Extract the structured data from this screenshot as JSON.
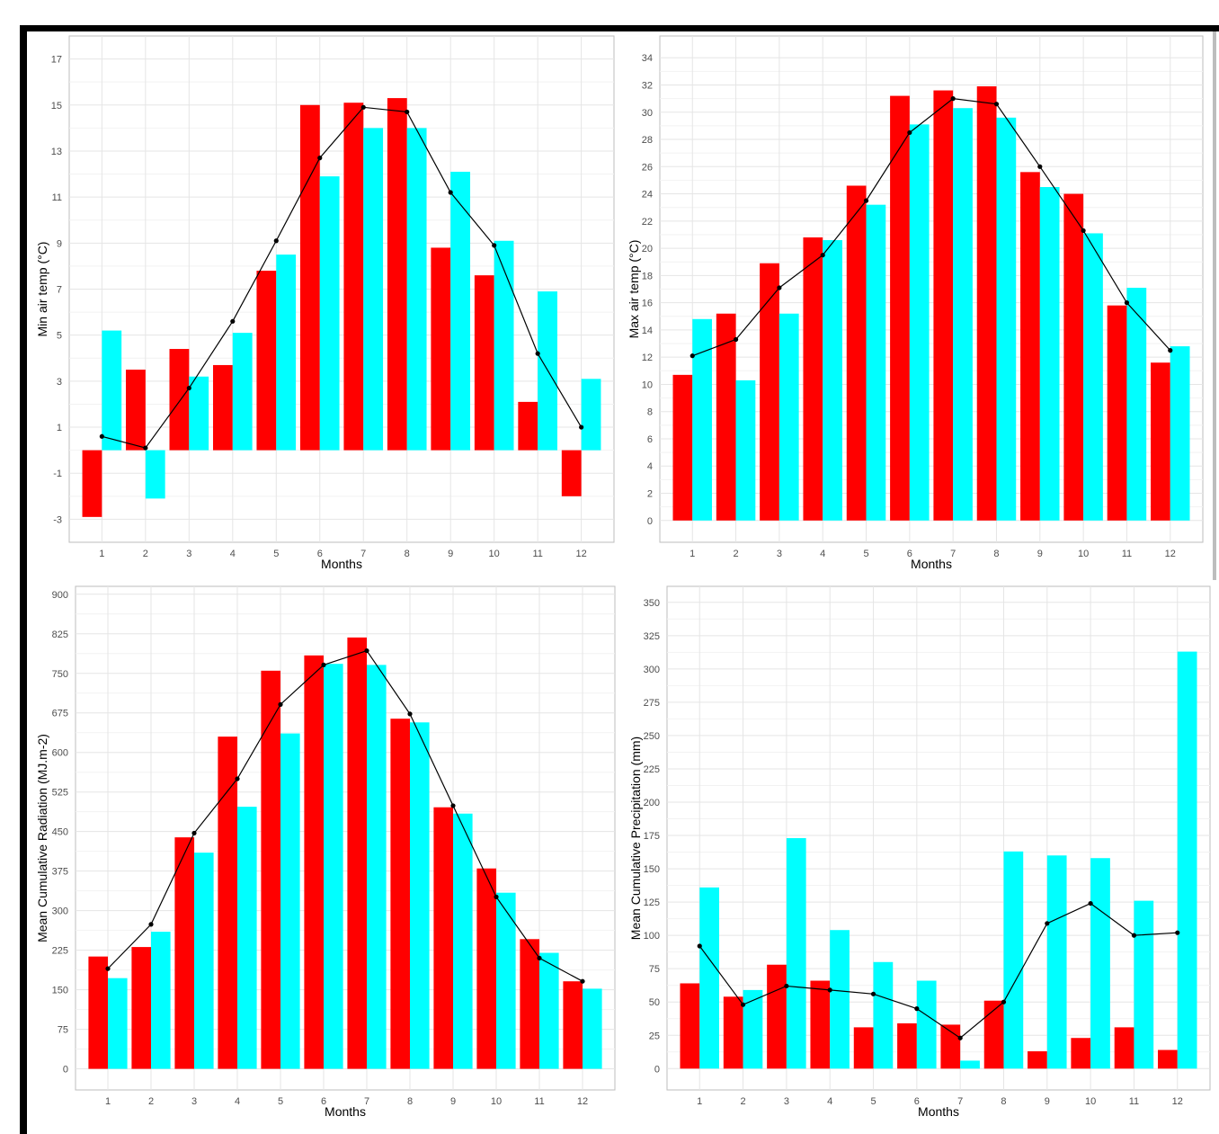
{
  "colors": {
    "series_a": "#ff0000",
    "series_b": "#00ffff",
    "mean_line": "#000000",
    "grid": "#e5e5e5",
    "panel_border": "#bdbdbd",
    "axis_text": "#4d4d4d",
    "frame": "#000000"
  },
  "chart_data": [
    {
      "type": "bar",
      "xlabel": "Months",
      "ylabel": "Min air temp (°C)",
      "categories": [
        "1",
        "2",
        "3",
        "4",
        "5",
        "6",
        "7",
        "8",
        "9",
        "10",
        "11",
        "12"
      ],
      "ylim": [
        -4.0,
        18.0
      ],
      "yticks": [
        -3,
        -1,
        1,
        3,
        5,
        7,
        9,
        11,
        13,
        15,
        17
      ],
      "grid": true,
      "series": [
        {
          "values": [
            -2.9,
            3.5,
            4.4,
            3.7,
            7.8,
            15.0,
            15.1,
            15.3,
            8.8,
            7.6,
            2.1,
            -2.0
          ]
        },
        {
          "values": [
            5.2,
            -2.1,
            3.2,
            5.1,
            8.5,
            11.9,
            14.0,
            14.0,
            12.1,
            9.1,
            6.9,
            3.1
          ]
        }
      ],
      "line": {
        "values": [
          0.6,
          0.1,
          2.7,
          5.6,
          9.1,
          12.7,
          14.9,
          14.7,
          11.2,
          8.9,
          4.2,
          1.0
        ]
      }
    },
    {
      "type": "bar",
      "xlabel": "Months",
      "ylabel": "Max air temp (°C)",
      "categories": [
        "1",
        "2",
        "3",
        "4",
        "5",
        "6",
        "7",
        "8",
        "9",
        "10",
        "11",
        "12"
      ],
      "ylim": [
        -1.6,
        35.6
      ],
      "yticks": [
        0,
        2,
        4,
        6,
        8,
        10,
        12,
        14,
        16,
        18,
        20,
        22,
        24,
        26,
        28,
        30,
        32,
        34
      ],
      "grid": true,
      "series": [
        {
          "values": [
            10.7,
            15.2,
            18.9,
            20.8,
            24.6,
            31.2,
            31.6,
            31.9,
            25.6,
            24.0,
            15.8,
            11.6
          ]
        },
        {
          "values": [
            14.8,
            10.3,
            15.2,
            20.6,
            23.2,
            29.1,
            30.3,
            29.6,
            24.5,
            21.1,
            17.1,
            12.8
          ]
        }
      ],
      "line": {
        "values": [
          12.1,
          13.3,
          17.1,
          19.5,
          23.5,
          28.5,
          31.0,
          30.6,
          26.0,
          21.3,
          16.0,
          12.5
        ]
      }
    },
    {
      "type": "bar",
      "xlabel": "Months",
      "ylabel": "Mean Cumulative Radiation (MJ.m-2)",
      "categories": [
        "1",
        "2",
        "3",
        "4",
        "5",
        "6",
        "7",
        "8",
        "9",
        "10",
        "11",
        "12"
      ],
      "ylim": [
        -40,
        915
      ],
      "yticks": [
        0,
        75,
        150,
        225,
        300,
        375,
        450,
        525,
        600,
        675,
        750,
        825,
        900
      ],
      "grid": true,
      "series": [
        {
          "values": [
            213,
            231,
            439,
            630,
            755,
            784,
            818,
            664,
            496,
            380,
            246,
            166
          ]
        },
        {
          "values": [
            172,
            260,
            410,
            497,
            636,
            768,
            766,
            657,
            484,
            334,
            220,
            152
          ]
        }
      ],
      "line": {
        "values": [
          190,
          274,
          447,
          550,
          691,
          766,
          793,
          673,
          499,
          326,
          210,
          166
        ]
      }
    },
    {
      "type": "bar",
      "xlabel": "Months",
      "ylabel": "Mean Cumulative Precipitation (mm)",
      "categories": [
        "1",
        "2",
        "3",
        "4",
        "5",
        "6",
        "7",
        "8",
        "9",
        "10",
        "11",
        "12"
      ],
      "ylim": [
        -16,
        362
      ],
      "yticks": [
        0,
        25,
        50,
        75,
        100,
        125,
        150,
        175,
        200,
        225,
        250,
        275,
        300,
        325,
        350
      ],
      "grid": true,
      "series": [
        {
          "values": [
            64,
            54,
            78,
            66,
            31,
            34,
            33,
            51,
            13,
            23,
            31,
            14
          ]
        },
        {
          "values": [
            136,
            59,
            173,
            104,
            80,
            66,
            6,
            163,
            160,
            158,
            126,
            313
          ]
        }
      ],
      "line": {
        "values": [
          92,
          48,
          62,
          59,
          56,
          45,
          23,
          50,
          109,
          124,
          100,
          102
        ]
      }
    }
  ]
}
